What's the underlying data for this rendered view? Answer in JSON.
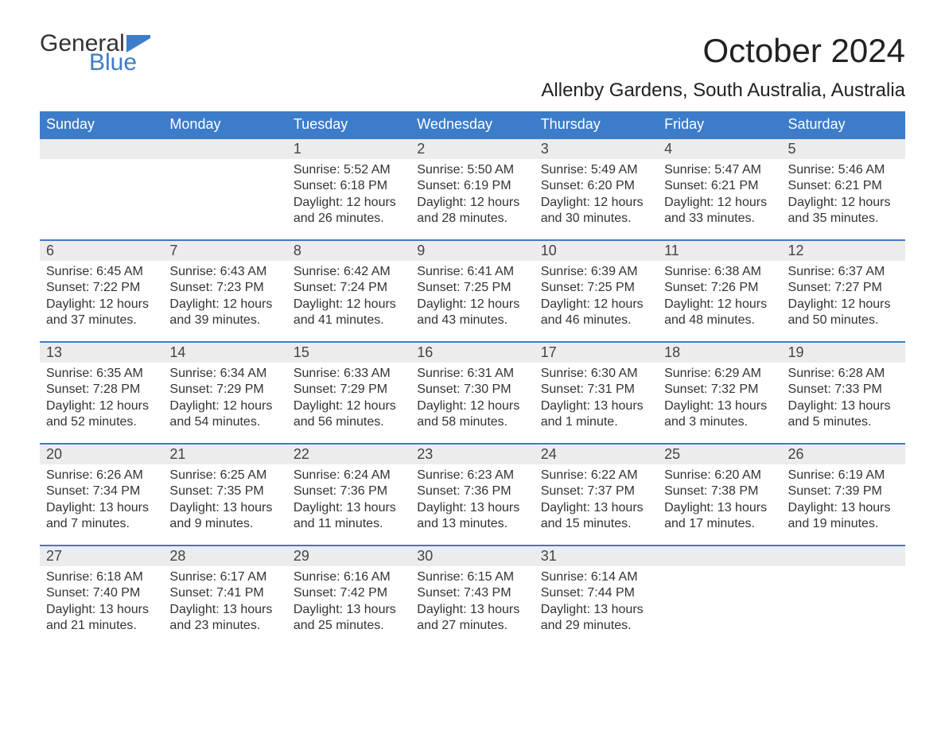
{
  "brand": {
    "word1": "General",
    "word2": "Blue",
    "logo_color": "#3d7cc9"
  },
  "title": "October 2024",
  "location": "Allenby Gardens, South Australia, Australia",
  "colors": {
    "header_bg": "#3d7cc9",
    "header_text": "#ffffff",
    "daynum_bg": "#ececec",
    "border_top": "#3d7cc9",
    "body_text": "#333333",
    "page_bg": "#ffffff"
  },
  "fonts": {
    "title_size": 42,
    "location_size": 24,
    "th_size": 18,
    "body_size": 16
  },
  "weekdays": [
    "Sunday",
    "Monday",
    "Tuesday",
    "Wednesday",
    "Thursday",
    "Friday",
    "Saturday"
  ],
  "weeks": [
    [
      null,
      null,
      {
        "n": "1",
        "sunrise": "5:52 AM",
        "sunset": "6:18 PM",
        "daylight": "12 hours and 26 minutes."
      },
      {
        "n": "2",
        "sunrise": "5:50 AM",
        "sunset": "6:19 PM",
        "daylight": "12 hours and 28 minutes."
      },
      {
        "n": "3",
        "sunrise": "5:49 AM",
        "sunset": "6:20 PM",
        "daylight": "12 hours and 30 minutes."
      },
      {
        "n": "4",
        "sunrise": "5:47 AM",
        "sunset": "6:21 PM",
        "daylight": "12 hours and 33 minutes."
      },
      {
        "n": "5",
        "sunrise": "5:46 AM",
        "sunset": "6:21 PM",
        "daylight": "12 hours and 35 minutes."
      }
    ],
    [
      {
        "n": "6",
        "sunrise": "6:45 AM",
        "sunset": "7:22 PM",
        "daylight": "12 hours and 37 minutes."
      },
      {
        "n": "7",
        "sunrise": "6:43 AM",
        "sunset": "7:23 PM",
        "daylight": "12 hours and 39 minutes."
      },
      {
        "n": "8",
        "sunrise": "6:42 AM",
        "sunset": "7:24 PM",
        "daylight": "12 hours and 41 minutes."
      },
      {
        "n": "9",
        "sunrise": "6:41 AM",
        "sunset": "7:25 PM",
        "daylight": "12 hours and 43 minutes."
      },
      {
        "n": "10",
        "sunrise": "6:39 AM",
        "sunset": "7:25 PM",
        "daylight": "12 hours and 46 minutes."
      },
      {
        "n": "11",
        "sunrise": "6:38 AM",
        "sunset": "7:26 PM",
        "daylight": "12 hours and 48 minutes."
      },
      {
        "n": "12",
        "sunrise": "6:37 AM",
        "sunset": "7:27 PM",
        "daylight": "12 hours and 50 minutes."
      }
    ],
    [
      {
        "n": "13",
        "sunrise": "6:35 AM",
        "sunset": "7:28 PM",
        "daylight": "12 hours and 52 minutes."
      },
      {
        "n": "14",
        "sunrise": "6:34 AM",
        "sunset": "7:29 PM",
        "daylight": "12 hours and 54 minutes."
      },
      {
        "n": "15",
        "sunrise": "6:33 AM",
        "sunset": "7:29 PM",
        "daylight": "12 hours and 56 minutes."
      },
      {
        "n": "16",
        "sunrise": "6:31 AM",
        "sunset": "7:30 PM",
        "daylight": "12 hours and 58 minutes."
      },
      {
        "n": "17",
        "sunrise": "6:30 AM",
        "sunset": "7:31 PM",
        "daylight": "13 hours and 1 minute."
      },
      {
        "n": "18",
        "sunrise": "6:29 AM",
        "sunset": "7:32 PM",
        "daylight": "13 hours and 3 minutes."
      },
      {
        "n": "19",
        "sunrise": "6:28 AM",
        "sunset": "7:33 PM",
        "daylight": "13 hours and 5 minutes."
      }
    ],
    [
      {
        "n": "20",
        "sunrise": "6:26 AM",
        "sunset": "7:34 PM",
        "daylight": "13 hours and 7 minutes."
      },
      {
        "n": "21",
        "sunrise": "6:25 AM",
        "sunset": "7:35 PM",
        "daylight": "13 hours and 9 minutes."
      },
      {
        "n": "22",
        "sunrise": "6:24 AM",
        "sunset": "7:36 PM",
        "daylight": "13 hours and 11 minutes."
      },
      {
        "n": "23",
        "sunrise": "6:23 AM",
        "sunset": "7:36 PM",
        "daylight": "13 hours and 13 minutes."
      },
      {
        "n": "24",
        "sunrise": "6:22 AM",
        "sunset": "7:37 PM",
        "daylight": "13 hours and 15 minutes."
      },
      {
        "n": "25",
        "sunrise": "6:20 AM",
        "sunset": "7:38 PM",
        "daylight": "13 hours and 17 minutes."
      },
      {
        "n": "26",
        "sunrise": "6:19 AM",
        "sunset": "7:39 PM",
        "daylight": "13 hours and 19 minutes."
      }
    ],
    [
      {
        "n": "27",
        "sunrise": "6:18 AM",
        "sunset": "7:40 PM",
        "daylight": "13 hours and 21 minutes."
      },
      {
        "n": "28",
        "sunrise": "6:17 AM",
        "sunset": "7:41 PM",
        "daylight": "13 hours and 23 minutes."
      },
      {
        "n": "29",
        "sunrise": "6:16 AM",
        "sunset": "7:42 PM",
        "daylight": "13 hours and 25 minutes."
      },
      {
        "n": "30",
        "sunrise": "6:15 AM",
        "sunset": "7:43 PM",
        "daylight": "13 hours and 27 minutes."
      },
      {
        "n": "31",
        "sunrise": "6:14 AM",
        "sunset": "7:44 PM",
        "daylight": "13 hours and 29 minutes."
      },
      null,
      null
    ]
  ],
  "labels": {
    "sunrise": "Sunrise: ",
    "sunset": "Sunset: ",
    "daylight": "Daylight: "
  }
}
